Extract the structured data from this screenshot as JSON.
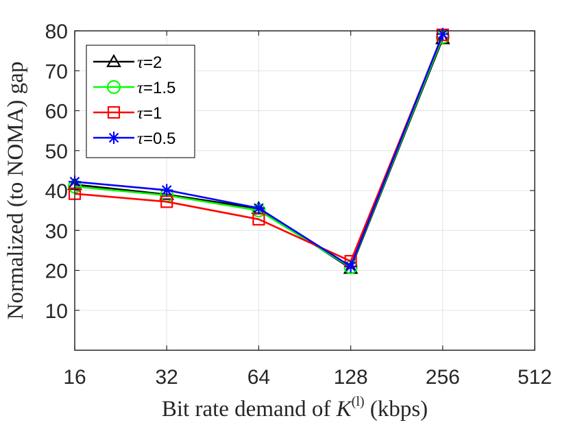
{
  "chart_data": {
    "type": "line",
    "x_scale": "log2",
    "categories": [
      "16",
      "32",
      "64",
      "128",
      "256",
      "512"
    ],
    "x": [
      16,
      32,
      64,
      128,
      256
    ],
    "xlim": [
      16,
      512
    ],
    "ylim": [
      0,
      80
    ],
    "yticks": [
      10,
      20,
      30,
      40,
      50,
      60,
      70,
      80
    ],
    "grid": true,
    "legend_position": "top-left",
    "xlabel": "Bit rate demand of K^(l) (kbps)",
    "xlabel_parts": {
      "prefix": "Bit rate demand of ",
      "var": "K",
      "sup": "(l)",
      "suffix": " (kbps)"
    },
    "ylabel": "Normalized (to NOMA) gap",
    "series": [
      {
        "name": "τ=2",
        "tau": "τ",
        "value_label": "=2",
        "color": "#000000",
        "marker": "triangle",
        "values": [
          41.5,
          39.0,
          35.5,
          20.5,
          78.0
        ]
      },
      {
        "name": "τ=1.5",
        "tau": "τ",
        "value_label": "=1.5",
        "color": "#00ff00",
        "marker": "circle",
        "values": [
          41.0,
          38.8,
          35.0,
          20.8,
          78.5
        ]
      },
      {
        "name": "τ=1",
        "tau": "τ",
        "value_label": "=1",
        "color": "#ff0000",
        "marker": "square",
        "values": [
          39.2,
          37.2,
          32.8,
          22.3,
          79.0
        ]
      },
      {
        "name": "τ=0.5",
        "tau": "τ",
        "value_label": "=0.5",
        "color": "#0000ff",
        "marker": "star",
        "values": [
          42.2,
          40.1,
          35.6,
          21.0,
          79.2
        ]
      }
    ]
  }
}
